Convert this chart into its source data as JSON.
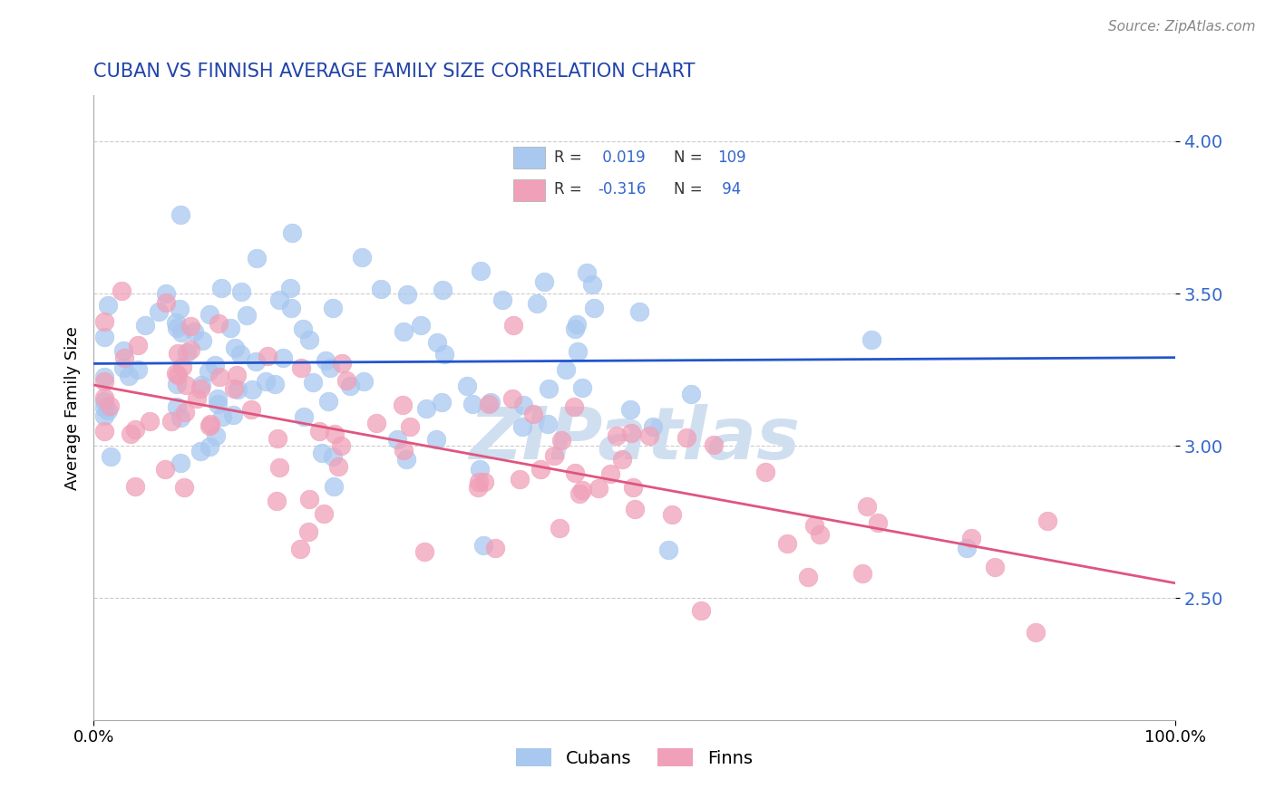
{
  "title": "CUBAN VS FINNISH AVERAGE FAMILY SIZE CORRELATION CHART",
  "source_text": "Source: ZipAtlas.com",
  "ylabel": "Average Family Size",
  "xlim": [
    0,
    1
  ],
  "ylim": [
    2.1,
    4.15
  ],
  "yticks": [
    2.5,
    3.0,
    3.5,
    4.0
  ],
  "xtick_labels": [
    "0.0%",
    "100.0%"
  ],
  "legend_labels": [
    "Cubans",
    "Finns"
  ],
  "cubans_color": "#a8c8f0",
  "finns_color": "#f0a0b8",
  "cubans_R": 0.019,
  "cubans_N": 109,
  "finns_R": -0.316,
  "finns_N": 94,
  "cubans_line_color": "#2255cc",
  "finns_line_color": "#e05580",
  "background_color": "#ffffff",
  "grid_color": "#cccccc",
  "title_color": "#2244aa",
  "watermark_text": "ZIPatlas",
  "watermark_color": "#d0dff0",
  "legend_R_color": "#3366cc",
  "legend_text_color": "#333333"
}
